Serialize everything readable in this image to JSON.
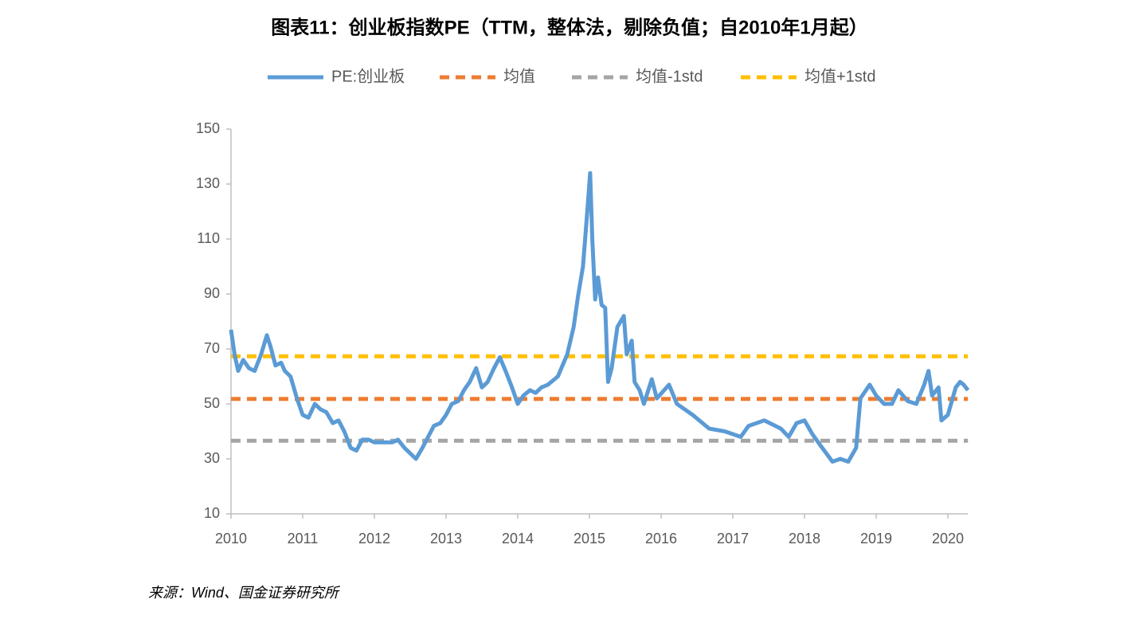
{
  "chart_data": {
    "type": "line",
    "title": "图表11：创业板指数PE（TTM，整体法，剔除负值；自2010年1月起）",
    "source": "来源：Wind、国金证券研究所",
    "xlim": [
      2010,
      2020.28
    ],
    "xticks": [
      2010,
      2011,
      2012,
      2013,
      2014,
      2015,
      2016,
      2017,
      2018,
      2019,
      2020
    ],
    "ylim": [
      10,
      150
    ],
    "yticks": [
      10,
      30,
      50,
      70,
      90,
      110,
      130,
      150
    ],
    "legend": "top",
    "grid": false,
    "series": [
      {
        "name": "PE:创业板",
        "color": "#5b9bd5",
        "style": "solid",
        "x": [
          2010.0,
          2010.05,
          2010.1,
          2010.17,
          2010.25,
          2010.33,
          2010.42,
          2010.5,
          2010.55,
          2010.62,
          2010.7,
          2010.75,
          2010.83,
          2010.92,
          2011.0,
          2011.08,
          2011.17,
          2011.25,
          2011.33,
          2011.42,
          2011.5,
          2011.58,
          2011.67,
          2011.75,
          2011.83,
          2011.92,
          2012.0,
          2012.08,
          2012.17,
          2012.25,
          2012.33,
          2012.42,
          2012.5,
          2012.58,
          2012.67,
          2012.75,
          2012.83,
          2012.92,
          2013.0,
          2013.08,
          2013.17,
          2013.25,
          2013.33,
          2013.42,
          2013.5,
          2013.58,
          2013.67,
          2013.75,
          2013.83,
          2013.92,
          2014.0,
          2014.08,
          2014.17,
          2014.25,
          2014.33,
          2014.42,
          2014.56,
          2014.69,
          2014.78,
          2014.84,
          2014.91,
          2014.97,
          2015.01,
          2015.04,
          2015.08,
          2015.12,
          2015.17,
          2015.22,
          2015.26,
          2015.31,
          2015.39,
          2015.48,
          2015.52,
          2015.59,
          2015.63,
          2015.7,
          2015.76,
          2015.87,
          2015.94,
          2016.11,
          2016.22,
          2016.44,
          2016.67,
          2016.89,
          2017.11,
          2017.22,
          2017.44,
          2017.67,
          2017.78,
          2017.89,
          2018.0,
          2018.11,
          2018.22,
          2018.39,
          2018.5,
          2018.61,
          2018.72,
          2018.78,
          2018.91,
          2019.0,
          2019.11,
          2019.22,
          2019.31,
          2019.44,
          2019.56,
          2019.67,
          2019.73,
          2019.78,
          2019.87,
          2019.91,
          2020.0,
          2020.11,
          2020.17,
          2020.22,
          2020.28
        ],
        "values": [
          77,
          68,
          62,
          66,
          63,
          62,
          68,
          75,
          71,
          64,
          65,
          62,
          60,
          52,
          46,
          45,
          50,
          48,
          47,
          43,
          44,
          40,
          34,
          33,
          37,
          37,
          36,
          36,
          36,
          36,
          37,
          34,
          32,
          30,
          34,
          38,
          42,
          43,
          46,
          50,
          51,
          55,
          58,
          63,
          56,
          58,
          63,
          67,
          62,
          56,
          50,
          53,
          55,
          54,
          56,
          57,
          60,
          68,
          78,
          89,
          100,
          120,
          134,
          110,
          88,
          96,
          86,
          85,
          58,
          63,
          78,
          82,
          68,
          73,
          58,
          55,
          50,
          59,
          52,
          57,
          50,
          46,
          41,
          40,
          38,
          42,
          44,
          41,
          38,
          43,
          44,
          39,
          35,
          29,
          30,
          29,
          34,
          52,
          57,
          53,
          50,
          50,
          55,
          51,
          50,
          57,
          62,
          53,
          56,
          44,
          46,
          56,
          58,
          57,
          55
        ]
      },
      {
        "name": "均值",
        "color": "#ed7d31",
        "style": "dashed",
        "x": [
          2010,
          2020.28
        ],
        "values": [
          51.8,
          51.8
        ]
      },
      {
        "name": "均值-1std",
        "color": "#a5a5a5",
        "style": "dashed",
        "x": [
          2010,
          2020.28
        ],
        "values": [
          36.6,
          36.6
        ]
      },
      {
        "name": "均值+1std",
        "color": "#ffc000",
        "style": "dashed",
        "x": [
          2010,
          2020.28
        ],
        "values": [
          67.3,
          67.3
        ]
      }
    ]
  }
}
